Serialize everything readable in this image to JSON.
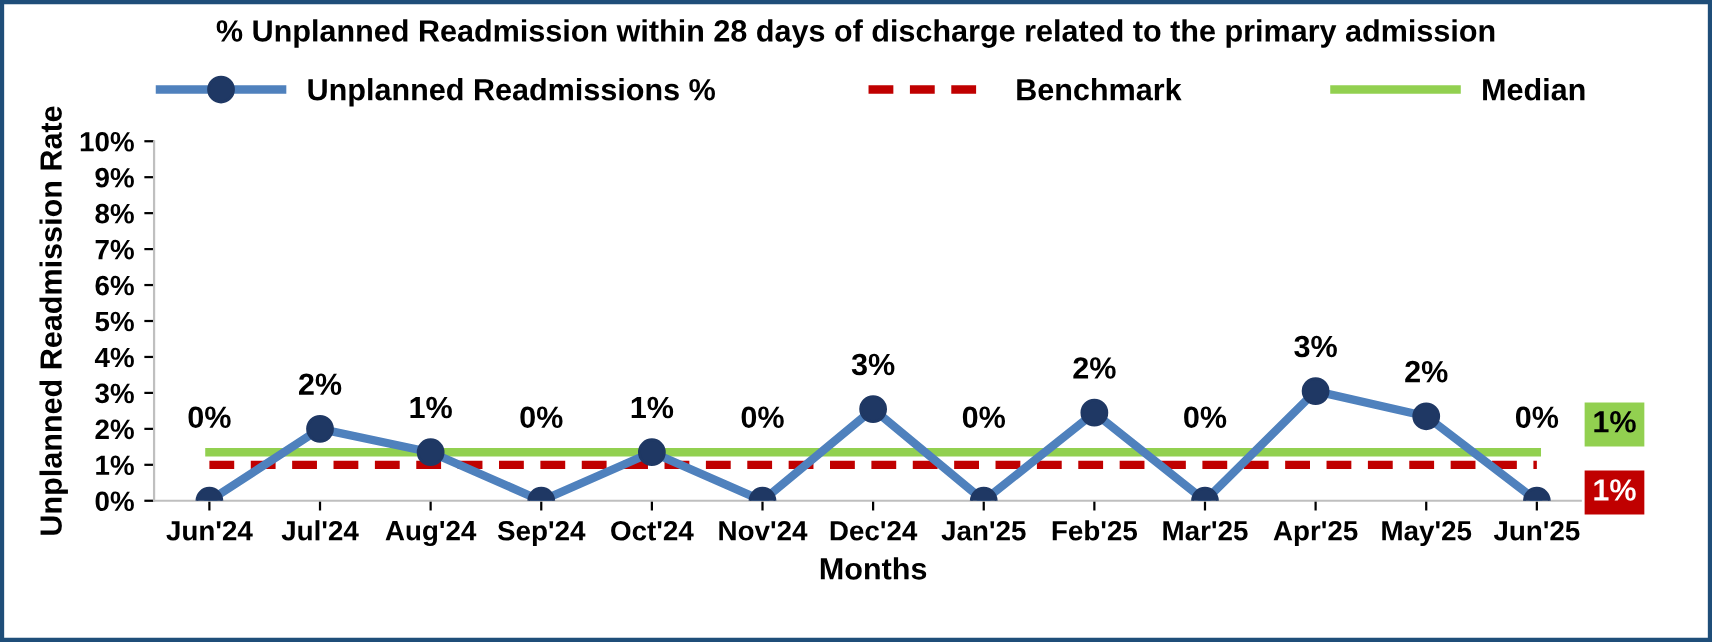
{
  "chart_data": {
    "type": "line",
    "title": "% Unplanned Readmission within 28 days of discharge related to the primary admission",
    "xlabel": "Months",
    "ylabel": "Unplanned Readmission Rate",
    "categories": [
      "Jun'24",
      "Jul'24",
      "Aug'24",
      "Sep'24",
      "Oct'24",
      "Nov'24",
      "Dec'24",
      "Jan'25",
      "Feb'25",
      "Mar'25",
      "Apr'25",
      "May'25",
      "Jun'25"
    ],
    "series": [
      {
        "name": "Unplanned Readmissions %",
        "color": "#4f81bd",
        "marker": "circle",
        "line_style": "solid",
        "values": [
          0,
          2.0,
          1.35,
          0,
          1.35,
          0,
          2.55,
          0,
          2.45,
          0,
          3.05,
          2.35,
          0
        ],
        "value_labels": [
          "0%",
          "2%",
          "1%",
          "0%",
          "1%",
          "0%",
          "3%",
          "0%",
          "2%",
          "0%",
          "3%",
          "2%",
          "0%"
        ]
      },
      {
        "name": "Benchmark",
        "color": "#c00000",
        "marker": "none",
        "line_style": "dashed",
        "values": [
          1,
          1,
          1,
          1,
          1,
          1,
          1,
          1,
          1,
          1,
          1,
          1,
          1
        ],
        "value_labels": [
          null,
          null,
          null,
          null,
          null,
          null,
          null,
          null,
          null,
          null,
          null,
          null,
          "1%"
        ]
      },
      {
        "name": "Median",
        "color": "#92d050",
        "marker": "none",
        "line_style": "solid",
        "values": [
          1.35,
          1.35,
          1.35,
          1.35,
          1.35,
          1.35,
          1.35,
          1.35,
          1.35,
          1.35,
          1.35,
          1.35,
          1.35
        ],
        "value_labels": [
          null,
          null,
          null,
          null,
          null,
          null,
          null,
          null,
          null,
          null,
          null,
          null,
          "1%"
        ]
      }
    ],
    "ylim": [
      0,
      10
    ],
    "yticks": [
      {
        "value": 0,
        "label": "0%"
      },
      {
        "value": 1,
        "label": "1%"
      },
      {
        "value": 2,
        "label": "2%"
      },
      {
        "value": 3,
        "label": "3%"
      },
      {
        "value": 4,
        "label": "4%"
      },
      {
        "value": 5,
        "label": "5%"
      },
      {
        "value": 6,
        "label": "6%"
      },
      {
        "value": 7,
        "label": "7%"
      },
      {
        "value": 8,
        "label": "8%"
      },
      {
        "value": 9,
        "label": "9%"
      },
      {
        "value": 10,
        "label": "10%"
      }
    ],
    "grid": false,
    "legend": "top"
  }
}
